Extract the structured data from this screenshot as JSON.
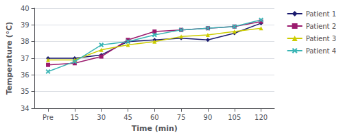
{
  "chart_data": {
    "type": "line",
    "xlabel": "Time (min)",
    "ylabel": "Temperature (°C)",
    "categories": [
      "Pre",
      "15",
      "30",
      "45",
      "60",
      "75",
      "90",
      "105",
      "120"
    ],
    "series": [
      {
        "name": "Patient 1",
        "color": "#1a1a6e",
        "marker": "diamond",
        "values": [
          37.0,
          37.0,
          37.2,
          38.0,
          38.1,
          38.2,
          38.1,
          38.5,
          39.1
        ]
      },
      {
        "name": "Patient 2",
        "color": "#9b1b6e",
        "marker": "square",
        "values": [
          36.6,
          36.7,
          37.1,
          38.1,
          38.6,
          38.7,
          38.8,
          38.9,
          39.2
        ]
      },
      {
        "name": "Patient 3",
        "color": "#cccc00",
        "marker": "triangle",
        "values": [
          36.9,
          36.9,
          37.5,
          37.8,
          38.0,
          38.3,
          38.4,
          38.6,
          38.8
        ]
      },
      {
        "name": "Patient 4",
        "color": "#3ab5b5",
        "marker": "x",
        "values": [
          36.2,
          36.8,
          37.8,
          38.0,
          38.4,
          38.7,
          38.8,
          38.9,
          39.3
        ]
      }
    ],
    "ylim": [
      34,
      40
    ],
    "yticks": [
      34,
      35,
      36,
      37,
      38,
      39,
      40
    ],
    "grid": true,
    "legend": "right"
  }
}
